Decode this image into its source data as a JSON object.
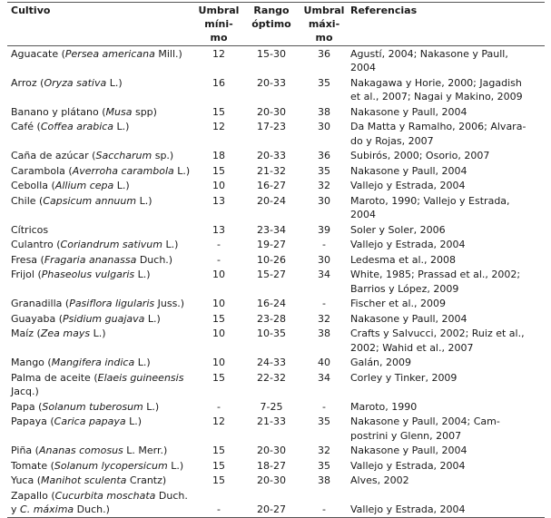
{
  "table": {
    "headers": {
      "cultivo": "Cultivo",
      "umbral_minimo": "Umbral\nmíni-\nmo",
      "rango_optimo": "Rango\nóptimo",
      "umbral_maximo": "Umbral\nmáxi-\nmo",
      "referencias": "Referencias"
    },
    "rows": [
      {
        "cultivo": [
          [
            "Aguacate (",
            false
          ],
          [
            "Persea americana",
            true
          ],
          [
            " Mill.)",
            false
          ]
        ],
        "min": "12",
        "rango": "15-30",
        "max": "36",
        "refs": "Agustí, 2004; Nakasone y Paull,\n2004"
      },
      {
        "cultivo": [
          [
            "Arroz (",
            false
          ],
          [
            "Oryza sativa",
            true
          ],
          [
            " L.)",
            false
          ]
        ],
        "min": "16",
        "rango": "20-33",
        "max": "35",
        "refs": "Nakagawa y Horie, 2000; Jagadish\net al., 2007; Nagai y Makino, 2009"
      },
      {
        "cultivo": [
          [
            "Banano y plátano (",
            false
          ],
          [
            "Musa",
            true
          ],
          [
            " spp)",
            false
          ]
        ],
        "min": "15",
        "rango": "20-30",
        "max": "38",
        "refs": "Nakasone y Paull, 2004"
      },
      {
        "cultivo": [
          [
            "Café (",
            false
          ],
          [
            "Coffea arabica",
            true
          ],
          [
            " L.)",
            false
          ]
        ],
        "min": "12",
        "rango": "17-23",
        "max": "30",
        "refs": "Da Matta y Ramalho, 2006; Alvara-\ndo y Rojas, 2007"
      },
      {
        "cultivo": [
          [
            "Caña de azúcar (",
            false
          ],
          [
            "Saccharum",
            true
          ],
          [
            " sp.)",
            false
          ]
        ],
        "min": "18",
        "rango": "20-33",
        "max": "36",
        "refs": "Subirós, 2000; Osorio, 2007"
      },
      {
        "cultivo": [
          [
            "Carambola (",
            false
          ],
          [
            "Averroha carambola",
            true
          ],
          [
            " L.)",
            false
          ]
        ],
        "min": "15",
        "rango": "21-32",
        "max": "35",
        "refs": "Nakasone y Paull, 2004"
      },
      {
        "cultivo": [
          [
            "Cebolla (",
            false
          ],
          [
            "Allium cepa",
            true
          ],
          [
            " L.)",
            false
          ]
        ],
        "min": "10",
        "rango": "16-27",
        "max": "32",
        "refs": "Vallejo y Estrada, 2004"
      },
      {
        "cultivo": [
          [
            "Chile (",
            false
          ],
          [
            "Capsicum annuum",
            true
          ],
          [
            " L.)",
            false
          ]
        ],
        "min": "13",
        "rango": "20-24",
        "max": "30",
        "refs": "Maroto, 1990; Vallejo y Estrada,\n2004"
      },
      {
        "cultivo": [
          [
            "Cítricos",
            false
          ]
        ],
        "min": "13",
        "rango": "23-34",
        "max": "39",
        "refs": "Soler y Soler, 2006"
      },
      {
        "cultivo": [
          [
            "Culantro (",
            false
          ],
          [
            "Coriandrum sativum",
            true
          ],
          [
            " L.)",
            false
          ]
        ],
        "min": "-",
        "rango": "19-27",
        "max": "-",
        "refs": "Vallejo y Estrada, 2004"
      },
      {
        "cultivo": [
          [
            "Fresa (",
            false
          ],
          [
            "Fragaria ananassa",
            true
          ],
          [
            " Duch.)",
            false
          ]
        ],
        "min": "-",
        "rango": "10-26",
        "max": "30",
        "refs": "Ledesma et al., 2008"
      },
      {
        "cultivo": [
          [
            "Frijol (",
            false
          ],
          [
            "Phaseolus vulgaris",
            true
          ],
          [
            " L.)",
            false
          ]
        ],
        "min": "10",
        "rango": "15-27",
        "max": "34",
        "refs": "White, 1985; Prassad et al., 2002;\nBarrios y López, 2009"
      },
      {
        "cultivo": [
          [
            "Granadilla (",
            false
          ],
          [
            "Pasiflora ligularis",
            true
          ],
          [
            " Juss.)",
            false
          ]
        ],
        "min": "10",
        "rango": "16-24",
        "max": "-",
        "refs": "Fischer et al., 2009"
      },
      {
        "cultivo": [
          [
            "Guayaba (",
            false
          ],
          [
            "Psidium guajava",
            true
          ],
          [
            " L.)",
            false
          ]
        ],
        "min": "15",
        "rango": "23-28",
        "max": "32",
        "refs": "Nakasone y Paull, 2004"
      },
      {
        "cultivo": [
          [
            "Maíz (",
            false
          ],
          [
            "Zea mays",
            true
          ],
          [
            " L.)",
            false
          ]
        ],
        "min": "10",
        "rango": "10-35",
        "max": "38",
        "refs": "Crafts y Salvucci, 2002; Ruiz et al.,\n2002; Wahid et al., 2007"
      },
      {
        "cultivo": [
          [
            "Mango (",
            false
          ],
          [
            "Mangifera indica",
            true
          ],
          [
            " L.)",
            false
          ]
        ],
        "min": "10",
        "rango": "24-33",
        "max": "40",
        "refs": "Galán, 2009"
      },
      {
        "cultivo": [
          [
            "Palma de aceite (",
            false
          ],
          [
            "Elaeis guineensis",
            true
          ],
          [
            "\nJacq.)",
            false
          ]
        ],
        "min": "15",
        "rango": "22-32",
        "max": "34",
        "refs": "Corley y Tinker, 2009"
      },
      {
        "cultivo": [
          [
            "Papa (",
            false
          ],
          [
            "Solanum tuberosum",
            true
          ],
          [
            " L.)",
            false
          ]
        ],
        "min": "-",
        "rango": "7-25",
        "max": "-",
        "refs": "Maroto, 1990"
      },
      {
        "cultivo": [
          [
            "Papaya (",
            false
          ],
          [
            "Carica papaya",
            true
          ],
          [
            " L.)",
            false
          ]
        ],
        "min": "12",
        "rango": "21-33",
        "max": "35",
        "refs": "Nakasone y Paull, 2004; Cam-\npostrini y Glenn, 2007"
      },
      {
        "cultivo": [
          [
            "Piña (",
            false
          ],
          [
            "Ananas comosus",
            true
          ],
          [
            " L. Merr.)",
            false
          ]
        ],
        "min": "15",
        "rango": "20-30",
        "max": "32",
        "refs": "Nakasone y Paull, 2004"
      },
      {
        "cultivo": [
          [
            "Tomate (",
            false
          ],
          [
            "Solanum lycopersicum",
            true
          ],
          [
            " L.)",
            false
          ]
        ],
        "min": "15",
        "rango": "18-27",
        "max": "35",
        "refs": "Vallejo y Estrada, 2004"
      },
      {
        "cultivo": [
          [
            "Yuca (",
            false
          ],
          [
            "Manihot sculenta",
            true
          ],
          [
            " Crantz)",
            false
          ]
        ],
        "min": "15",
        "rango": "20-30",
        "max": "38",
        "refs": "Alves, 2002"
      },
      {
        "cultivo": [
          [
            "Zapallo (",
            false
          ],
          [
            "Cucurbita moschata",
            true
          ],
          [
            " Duch.\ny ",
            false
          ],
          [
            "C. máxima",
            true
          ],
          [
            " Duch.)",
            false
          ]
        ],
        "min": "-",
        "rango": "20-27",
        "max": "-",
        "refs": "Vallejo y Estrada, 2004",
        "valign": "bottom"
      }
    ]
  }
}
